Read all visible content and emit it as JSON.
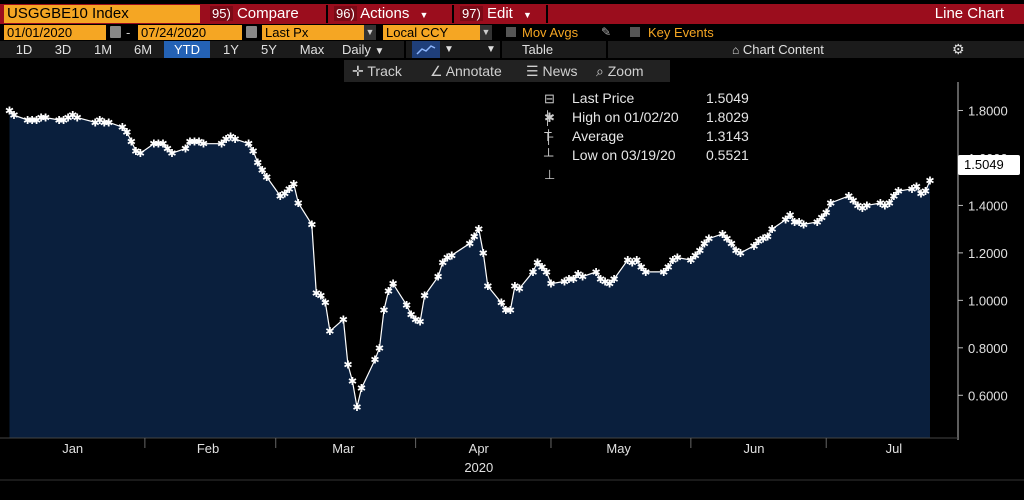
{
  "titlebar": {
    "ticker": "USGGBE10 Index",
    "compare": {
      "num": "95)",
      "label": "Compare"
    },
    "actions": {
      "num": "96)",
      "label": "Actions"
    },
    "edit": {
      "num": "97)",
      "label": "Edit"
    },
    "chart_type": "Line Chart"
  },
  "controls": {
    "start_date": "01/01/2020",
    "date_dash": "-",
    "end_date": "07/24/2020",
    "field": "Last Px",
    "currency": "Local CCY",
    "mov_avgs": "Mov Avgs",
    "key_events": "Key Events"
  },
  "ranges": {
    "items": [
      "1D",
      "3D",
      "1M",
      "6M",
      "YTD",
      "1Y",
      "5Y",
      "Max"
    ],
    "active": "YTD",
    "frequency": "Daily",
    "table_label": "Table",
    "chart_content": "Chart Content"
  },
  "toolbar": {
    "track": "Track",
    "annotate": "Annotate",
    "news": "News",
    "zoom": "Zoom"
  },
  "legend": {
    "last_label": "Last Price",
    "last_value": "1.5049",
    "high_label": "High on 01/02/20",
    "high_value": "1.8029",
    "avg_label": "Average",
    "avg_value": "1.3143",
    "low_label": "Low on 03/19/20",
    "low_value": "0.5521"
  },
  "last_price_tag": "1.5049",
  "colors": {
    "fill": "#0a1f3d",
    "line": "#ffffff",
    "title_bar": "#9b0d1d",
    "field_bg": "#f5a623",
    "active_range": "#2462b5"
  },
  "chart_data": {
    "type": "area",
    "title": "",
    "xlabel": "",
    "ylabel": "",
    "year_label": "2020",
    "ylim": [
      0.42,
      1.92
    ],
    "yticks": [
      "0.6000",
      "0.8000",
      "1.0000",
      "1.2000",
      "1.4000",
      "1.6000",
      "1.8000"
    ],
    "month_labels": [
      "Jan",
      "Feb",
      "Mar",
      "Apr",
      "May",
      "Jun",
      "Jul"
    ],
    "x_start": "2020-01-01",
    "x_end": "2020-07-24",
    "series": [
      {
        "values": [
          [
            "2020-01-02",
            1.8
          ],
          [
            "2020-01-03",
            1.78
          ],
          [
            "2020-01-06",
            1.76
          ],
          [
            "2020-01-07",
            1.76
          ],
          [
            "2020-01-08",
            1.76
          ],
          [
            "2020-01-09",
            1.77
          ],
          [
            "2020-01-10",
            1.77
          ],
          [
            "2020-01-13",
            1.76
          ],
          [
            "2020-01-14",
            1.76
          ],
          [
            "2020-01-15",
            1.77
          ],
          [
            "2020-01-16",
            1.78
          ],
          [
            "2020-01-17",
            1.77
          ],
          [
            "2020-01-21",
            1.75
          ],
          [
            "2020-01-22",
            1.76
          ],
          [
            "2020-01-23",
            1.75
          ],
          [
            "2020-01-24",
            1.75
          ],
          [
            "2020-01-27",
            1.73
          ],
          [
            "2020-01-28",
            1.71
          ],
          [
            "2020-01-29",
            1.67
          ],
          [
            "2020-01-30",
            1.63
          ],
          [
            "2020-01-31",
            1.62
          ],
          [
            "2020-02-03",
            1.66
          ],
          [
            "2020-02-04",
            1.66
          ],
          [
            "2020-02-05",
            1.66
          ],
          [
            "2020-02-06",
            1.64
          ],
          [
            "2020-02-07",
            1.62
          ],
          [
            "2020-02-10",
            1.64
          ],
          [
            "2020-02-11",
            1.67
          ],
          [
            "2020-02-12",
            1.67
          ],
          [
            "2020-02-13",
            1.67
          ],
          [
            "2020-02-14",
            1.66
          ],
          [
            "2020-02-18",
            1.66
          ],
          [
            "2020-02-19",
            1.68
          ],
          [
            "2020-02-20",
            1.69
          ],
          [
            "2020-02-21",
            1.68
          ],
          [
            "2020-02-24",
            1.66
          ],
          [
            "2020-02-25",
            1.63
          ],
          [
            "2020-02-26",
            1.58
          ],
          [
            "2020-02-27",
            1.55
          ],
          [
            "2020-02-28",
            1.52
          ],
          [
            "2020-03-02",
            1.44
          ],
          [
            "2020-03-03",
            1.45
          ],
          [
            "2020-03-04",
            1.47
          ],
          [
            "2020-03-05",
            1.49
          ],
          [
            "2020-03-06",
            1.41
          ],
          [
            "2020-03-09",
            1.32
          ],
          [
            "2020-03-10",
            1.03
          ],
          [
            "2020-03-11",
            1.02
          ],
          [
            "2020-03-12",
            0.99
          ],
          [
            "2020-03-13",
            0.87
          ],
          [
            "2020-03-16",
            0.92
          ],
          [
            "2020-03-17",
            0.73
          ],
          [
            "2020-03-18",
            0.66
          ],
          [
            "2020-03-19",
            0.55
          ],
          [
            "2020-03-20",
            0.63
          ],
          [
            "2020-03-23",
            0.75
          ],
          [
            "2020-03-24",
            0.8
          ],
          [
            "2020-03-25",
            0.96
          ],
          [
            "2020-03-26",
            1.04
          ],
          [
            "2020-03-27",
            1.07
          ],
          [
            "2020-03-30",
            0.98
          ],
          [
            "2020-03-31",
            0.94
          ],
          [
            "2020-04-01",
            0.92
          ],
          [
            "2020-04-02",
            0.91
          ],
          [
            "2020-04-03",
            1.02
          ],
          [
            "2020-04-06",
            1.1
          ],
          [
            "2020-04-07",
            1.16
          ],
          [
            "2020-04-08",
            1.18
          ],
          [
            "2020-04-09",
            1.19
          ],
          [
            "2020-04-13",
            1.24
          ],
          [
            "2020-04-14",
            1.27
          ],
          [
            "2020-04-15",
            1.3
          ],
          [
            "2020-04-16",
            1.2
          ],
          [
            "2020-04-17",
            1.06
          ],
          [
            "2020-04-20",
            0.99
          ],
          [
            "2020-04-21",
            0.96
          ],
          [
            "2020-04-22",
            0.96
          ],
          [
            "2020-04-23",
            1.06
          ],
          [
            "2020-04-24",
            1.05
          ],
          [
            "2020-04-27",
            1.12
          ],
          [
            "2020-04-28",
            1.16
          ],
          [
            "2020-04-29",
            1.14
          ],
          [
            "2020-04-30",
            1.12
          ],
          [
            "2020-05-01",
            1.07
          ],
          [
            "2020-05-04",
            1.08
          ],
          [
            "2020-05-05",
            1.09
          ],
          [
            "2020-05-06",
            1.09
          ],
          [
            "2020-05-07",
            1.11
          ],
          [
            "2020-05-08",
            1.1
          ],
          [
            "2020-05-11",
            1.12
          ],
          [
            "2020-05-12",
            1.09
          ],
          [
            "2020-05-13",
            1.08
          ],
          [
            "2020-05-14",
            1.07
          ],
          [
            "2020-05-15",
            1.09
          ],
          [
            "2020-05-18",
            1.17
          ],
          [
            "2020-05-19",
            1.16
          ],
          [
            "2020-05-20",
            1.17
          ],
          [
            "2020-05-21",
            1.14
          ],
          [
            "2020-05-22",
            1.12
          ],
          [
            "2020-05-26",
            1.12
          ],
          [
            "2020-05-27",
            1.14
          ],
          [
            "2020-05-28",
            1.17
          ],
          [
            "2020-05-29",
            1.18
          ],
          [
            "2020-06-01",
            1.17
          ],
          [
            "2020-06-02",
            1.19
          ],
          [
            "2020-06-03",
            1.21
          ],
          [
            "2020-06-04",
            1.24
          ],
          [
            "2020-06-05",
            1.26
          ],
          [
            "2020-06-08",
            1.28
          ],
          [
            "2020-06-09",
            1.26
          ],
          [
            "2020-06-10",
            1.24
          ],
          [
            "2020-06-11",
            1.21
          ],
          [
            "2020-06-12",
            1.2
          ],
          [
            "2020-06-15",
            1.23
          ],
          [
            "2020-06-16",
            1.25
          ],
          [
            "2020-06-17",
            1.26
          ],
          [
            "2020-06-18",
            1.27
          ],
          [
            "2020-06-19",
            1.3
          ],
          [
            "2020-06-22",
            1.34
          ],
          [
            "2020-06-23",
            1.36
          ],
          [
            "2020-06-24",
            1.33
          ],
          [
            "2020-06-25",
            1.33
          ],
          [
            "2020-06-26",
            1.32
          ],
          [
            "2020-06-29",
            1.33
          ],
          [
            "2020-06-30",
            1.35
          ],
          [
            "2020-07-01",
            1.37
          ],
          [
            "2020-07-02",
            1.41
          ],
          [
            "2020-07-06",
            1.44
          ],
          [
            "2020-07-07",
            1.42
          ],
          [
            "2020-07-08",
            1.4
          ],
          [
            "2020-07-09",
            1.39
          ],
          [
            "2020-07-10",
            1.4
          ],
          [
            "2020-07-13",
            1.41
          ],
          [
            "2020-07-14",
            1.4
          ],
          [
            "2020-07-15",
            1.41
          ],
          [
            "2020-07-16",
            1.44
          ],
          [
            "2020-07-17",
            1.46
          ],
          [
            "2020-07-20",
            1.47
          ],
          [
            "2020-07-21",
            1.48
          ],
          [
            "2020-07-22",
            1.45
          ],
          [
            "2020-07-23",
            1.46
          ],
          [
            "2020-07-24",
            1.5049
          ]
        ]
      }
    ]
  }
}
